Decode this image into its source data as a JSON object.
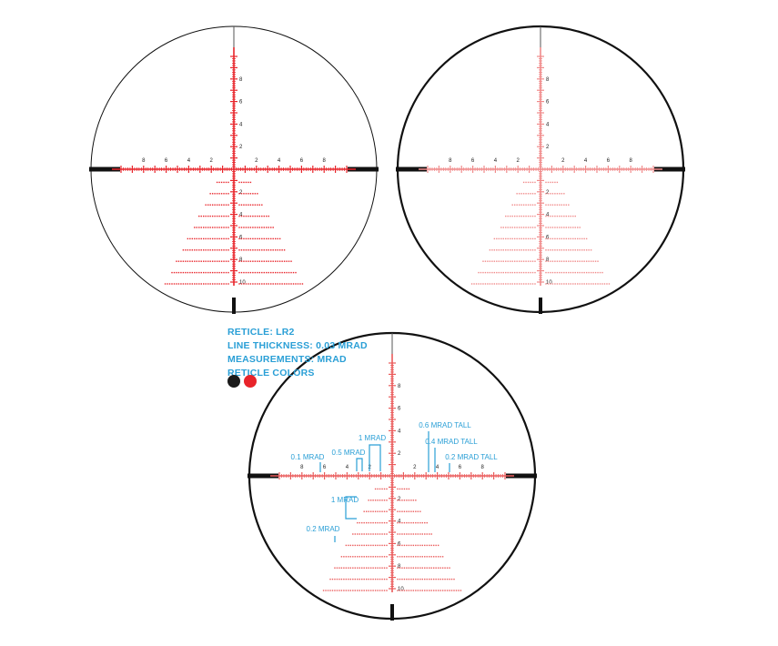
{
  "info": {
    "lines": [
      "RETICLE: LR2",
      "LINE THICKNESS: 0.03 MRAD",
      "MEASUREMENTS: MRAD",
      "RETICLE COLORS"
    ],
    "colors": [
      "#1a1a1a",
      "#e8242a"
    ]
  },
  "reticles": [
    {
      "id": "illuminated-red",
      "line_color": "#e8242a",
      "ring_width": "thin",
      "h_labels": [
        "8",
        "6",
        "4",
        "2",
        "2",
        "4",
        "6",
        "8"
      ],
      "v_up_labels": [
        "8",
        "6",
        "4",
        "2"
      ],
      "v_down_labels": [
        "2",
        "4",
        "6",
        "8",
        "10"
      ]
    },
    {
      "id": "unlit-pink",
      "line_color": "#f08a8a",
      "ring_width": "thick",
      "h_labels": [
        "8",
        "6",
        "4",
        "2",
        "2",
        "4",
        "6",
        "8"
      ],
      "v_up_labels": [
        "8",
        "6",
        "4",
        "2"
      ],
      "v_down_labels": [
        "2",
        "4",
        "6",
        "8",
        "10"
      ]
    },
    {
      "id": "annotated",
      "line_color": "#ea5a5a",
      "ring_width": "thick",
      "h_labels": [
        "8",
        "6",
        "4",
        "2",
        "2",
        "4",
        "6",
        "8"
      ],
      "v_up_labels": [
        "8",
        "6",
        "4",
        "2"
      ],
      "v_down_labels": [
        "2",
        "4",
        "6",
        "8",
        "10"
      ]
    }
  ],
  "callouts": {
    "color": "#2a9fd6",
    "items": [
      "0.1 MRAD",
      "0.5 MRAD",
      "1 MRAD",
      "0.6 MRAD TALL",
      "0.4 MRAD TALL",
      "0.2 MRAD TALL",
      "1 MRAD",
      "0.2 MRAD"
    ]
  }
}
